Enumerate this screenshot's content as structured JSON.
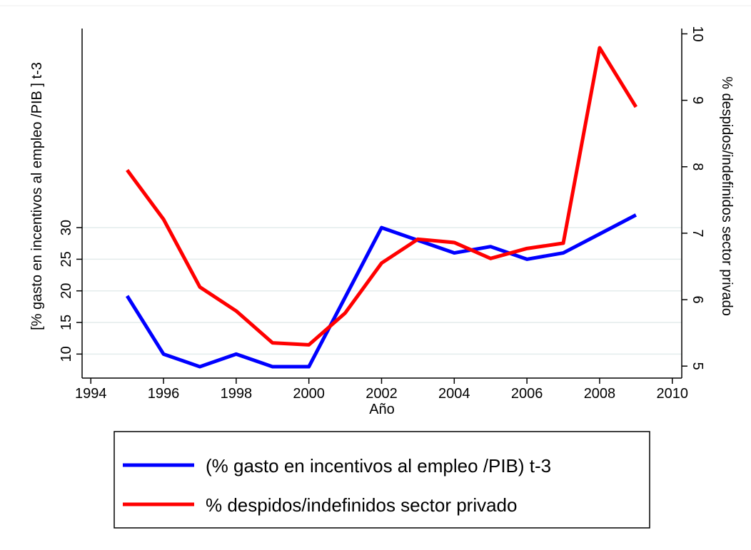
{
  "chart_data": {
    "type": "line",
    "x_label": "Año",
    "y_label": "[% gasto en incentivos al empleo /PIB ] t-3",
    "y2_label": "% despidos/indefinidos sector privado",
    "x": [
      1995,
      1996,
      1997,
      1998,
      1999,
      2000,
      2001,
      2002,
      2003,
      2004,
      2005,
      2006,
      2007,
      2008,
      2009
    ],
    "series": [
      {
        "name": "(% gasto en incentivos al empleo /PIB) t-3",
        "color": "#0000ff",
        "values": [
          19.2,
          10,
          8,
          10,
          8,
          8,
          19,
          30,
          28,
          26,
          27,
          25,
          26,
          29,
          32
        ]
      },
      {
        "name": "% despidos/indefinidos sector privado",
        "color": "#ff0000",
        "axis": "y2",
        "values": [
          7.95,
          7.21,
          6.19,
          5.83,
          5.35,
          5.32,
          5.8,
          6.55,
          6.91,
          6.86,
          6.62,
          6.77,
          6.85,
          9.79,
          8.9
        ]
      }
    ],
    "xlim": [
      1993.76,
      2010.26
    ],
    "xticks": [
      1994,
      1996,
      1998,
      2000,
      2002,
      2004,
      2006,
      2008,
      2010
    ],
    "ylim": [
      6.2,
      61.5
    ],
    "yticks": [
      10,
      15,
      20,
      25,
      30
    ],
    "y2lim": [
      4.82,
      10.08
    ],
    "y2ticks": [
      5,
      6,
      7,
      8,
      9,
      10
    ],
    "grid": true,
    "legend": "bottom"
  }
}
